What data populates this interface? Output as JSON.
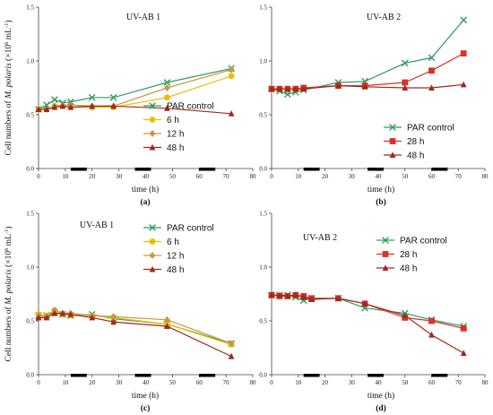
{
  "ylabel_parts": {
    "main": "Cell numbers of ",
    "species": "M. polaris",
    "unit_pre": " (×10",
    "exp": "6",
    "unit_mid": " mL",
    "exp2": "-1",
    "unit_post": ")"
  },
  "chart_data": [
    {
      "type": "line",
      "title": "UV-AB 1",
      "caption": "(a)",
      "xlabel": "time (h)",
      "xlim": [
        0,
        80
      ],
      "ylim": [
        0,
        1.5
      ],
      "xticks": [
        0,
        10,
        20,
        30,
        40,
        50,
        60,
        70,
        80
      ],
      "yticks": [
        0,
        0.5,
        1,
        1.5
      ],
      "ytick_labels": [
        "0.0",
        "0.5",
        "1.0",
        "1.5"
      ],
      "dark_bars": [
        [
          12,
          18
        ],
        [
          36,
          42
        ],
        [
          60,
          66
        ]
      ],
      "series": [
        {
          "name": "PAR control",
          "color": "#2e9c5e",
          "marker": "x",
          "x": [
            0,
            3,
            6,
            9,
            12,
            20,
            28,
            48,
            72
          ],
          "y": [
            0.55,
            0.59,
            0.64,
            0.61,
            0.62,
            0.66,
            0.66,
            0.8,
            0.93
          ]
        },
        {
          "name": "6 h",
          "color": "#e8c000",
          "marker": "circle",
          "x": [
            0,
            3,
            6,
            9,
            12,
            20,
            28,
            48,
            72
          ],
          "y": [
            0.55,
            0.55,
            0.58,
            0.58,
            0.57,
            0.57,
            0.57,
            0.66,
            0.86
          ]
        },
        {
          "name": "12 h",
          "color": "#cf9440",
          "marker": "diamond",
          "x": [
            0,
            3,
            6,
            9,
            12,
            20,
            28,
            48,
            72
          ],
          "y": [
            0.55,
            0.55,
            0.58,
            0.59,
            0.59,
            0.58,
            0.58,
            0.75,
            0.92
          ]
        },
        {
          "name": "48 h",
          "color": "#9e2a1e",
          "marker": "triangle",
          "x": [
            0,
            3,
            6,
            9,
            12,
            20,
            28,
            48,
            72
          ],
          "y": [
            0.55,
            0.55,
            0.57,
            0.58,
            0.57,
            0.58,
            0.58,
            0.56,
            0.51
          ]
        }
      ]
    },
    {
      "type": "line",
      "title": "UV-AB 2",
      "caption": "(b)",
      "xlabel": "time (h)",
      "xlim": [
        0,
        80
      ],
      "ylim": [
        0,
        1.5
      ],
      "xticks": [
        0,
        10,
        20,
        30,
        40,
        50,
        60,
        70,
        80
      ],
      "yticks": [
        0,
        0.5,
        1,
        1.5
      ],
      "ytick_labels": [
        "0.0",
        "0.5",
        "1.0",
        "1.5"
      ],
      "dark_bars": [
        [
          12,
          18
        ],
        [
          36,
          42
        ],
        [
          60,
          66
        ]
      ],
      "series": [
        {
          "name": "PAR control",
          "color": "#2e9c5e",
          "marker": "x",
          "x": [
            0,
            3,
            6,
            9,
            12,
            25,
            35,
            50,
            60,
            72
          ],
          "y": [
            0.74,
            0.72,
            0.69,
            0.71,
            0.73,
            0.8,
            0.81,
            0.98,
            1.03,
            1.38
          ]
        },
        {
          "name": "28 h",
          "color": "#d9322a",
          "marker": "square",
          "x": [
            0,
            3,
            6,
            9,
            12,
            25,
            35,
            50,
            60,
            72
          ],
          "y": [
            0.74,
            0.74,
            0.74,
            0.74,
            0.75,
            0.77,
            0.77,
            0.8,
            0.91,
            1.07
          ]
        },
        {
          "name": "48 h",
          "color": "#9e2a1e",
          "marker": "triangle",
          "x": [
            0,
            3,
            6,
            9,
            12,
            25,
            35,
            50,
            60,
            72
          ],
          "y": [
            0.74,
            0.74,
            0.74,
            0.74,
            0.74,
            0.77,
            0.76,
            0.75,
            0.75,
            0.78
          ]
        }
      ]
    },
    {
      "type": "line",
      "title": "UV-AB 1",
      "caption": "(c)",
      "xlabel": "time (h)",
      "xlim": [
        0,
        80
      ],
      "ylim": [
        0,
        1.5
      ],
      "xticks": [
        0,
        10,
        20,
        30,
        40,
        50,
        60,
        70,
        80
      ],
      "yticks": [
        0,
        0.5,
        1,
        1.5
      ],
      "ytick_labels": [
        "0.0",
        "0.5",
        "1.0",
        "1.5"
      ],
      "dark_bars": [
        [
          12,
          18
        ],
        [
          36,
          42
        ],
        [
          60,
          66
        ]
      ],
      "series": [
        {
          "name": "PAR control",
          "color": "#2e9c5e",
          "marker": "x",
          "x": [
            0,
            3,
            6,
            9,
            12,
            20,
            28,
            48,
            72
          ],
          "y": [
            0.55,
            0.55,
            0.58,
            0.56,
            0.55,
            0.56,
            0.52,
            0.47,
            0.29
          ]
        },
        {
          "name": "6 h",
          "color": "#e8c000",
          "marker": "circle",
          "x": [
            0,
            3,
            6,
            9,
            12,
            20,
            28,
            48,
            72
          ],
          "y": [
            0.56,
            0.55,
            0.6,
            0.56,
            0.55,
            0.55,
            0.53,
            0.47,
            0.28
          ]
        },
        {
          "name": "12 h",
          "color": "#cf9440",
          "marker": "diamond",
          "x": [
            0,
            3,
            6,
            9,
            12,
            20,
            28,
            48,
            72
          ],
          "y": [
            0.55,
            0.54,
            0.6,
            0.57,
            0.57,
            0.55,
            0.54,
            0.51,
            0.29
          ]
        },
        {
          "name": "48 h",
          "color": "#9e2a1e",
          "marker": "triangle",
          "x": [
            0,
            3,
            6,
            9,
            12,
            20,
            28,
            48,
            72
          ],
          "y": [
            0.53,
            0.53,
            0.57,
            0.57,
            0.56,
            0.53,
            0.49,
            0.45,
            0.17
          ]
        }
      ]
    },
    {
      "type": "line",
      "title": "UV-AB 2",
      "caption": "(d)",
      "xlabel": "time (h)",
      "xlim": [
        0,
        80
      ],
      "ylim": [
        0,
        1.5
      ],
      "xticks": [
        0,
        10,
        20,
        30,
        40,
        50,
        60,
        70,
        80
      ],
      "yticks": [
        0,
        0.5,
        1,
        1.5
      ],
      "ytick_labels": [
        "0.0",
        "0.5",
        "1.0",
        "1.5"
      ],
      "dark_bars": [
        [
          12,
          18
        ],
        [
          36,
          42
        ],
        [
          60,
          66
        ]
      ],
      "series": [
        {
          "name": "PAR control",
          "color": "#2e9c5e",
          "marker": "x",
          "x": [
            0,
            3,
            6,
            9,
            12,
            15,
            25,
            35,
            50,
            60,
            72
          ],
          "y": [
            0.74,
            0.74,
            0.74,
            0.72,
            0.69,
            0.71,
            0.71,
            0.62,
            0.57,
            0.51,
            0.45
          ]
        },
        {
          "name": "28 h",
          "color": "#d9322a",
          "marker": "square",
          "x": [
            0,
            3,
            6,
            9,
            12,
            15,
            25,
            35,
            50,
            60,
            72
          ],
          "y": [
            0.74,
            0.73,
            0.73,
            0.74,
            0.73,
            0.71,
            0.71,
            0.66,
            0.53,
            0.5,
            0.43
          ]
        },
        {
          "name": "48 h",
          "color": "#9e2a1e",
          "marker": "triangle",
          "x": [
            0,
            3,
            6,
            9,
            12,
            15,
            25,
            35,
            50,
            60,
            72
          ],
          "y": [
            0.74,
            0.74,
            0.73,
            0.74,
            0.72,
            0.7,
            0.71,
            0.66,
            0.55,
            0.37,
            0.2
          ]
        }
      ]
    }
  ]
}
